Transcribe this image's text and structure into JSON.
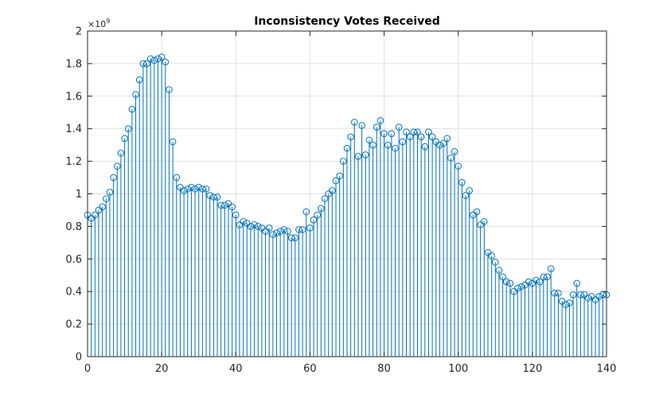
{
  "chart_data": {
    "type": "stem",
    "title": "Inconsistency Votes Received",
    "xlabel": "",
    "ylabel": "",
    "xlim": [
      0,
      140
    ],
    "ylim": [
      0,
      2
    ],
    "y_multiplier_label": "×10",
    "y_multiplier_exponent": "9",
    "grid": true,
    "color": "#0072BD",
    "x_ticks": [
      "0",
      "20",
      "40",
      "60",
      "80",
      "100",
      "120",
      "140"
    ],
    "y_ticks": [
      "0",
      "0.2",
      "0.4",
      "0.6",
      "0.8",
      "1",
      "1.2",
      "1.4",
      "1.6",
      "1.8",
      "2"
    ],
    "series": [
      {
        "values": [
          0.87,
          0.85,
          0.87,
          0.9,
          0.92,
          0.97,
          1.01,
          1.1,
          1.17,
          1.25,
          1.34,
          1.4,
          1.52,
          1.61,
          1.7,
          1.8,
          1.8,
          1.83,
          1.82,
          1.83,
          1.84,
          1.81,
          1.64,
          1.32,
          1.1,
          1.04,
          1.02,
          1.03,
          1.04,
          1.03,
          1.04,
          1.03,
          1.03,
          0.99,
          0.98,
          0.98,
          0.93,
          0.93,
          0.94,
          0.92,
          0.87,
          0.81,
          0.83,
          0.82,
          0.8,
          0.81,
          0.8,
          0.79,
          0.77,
          0.79,
          0.75,
          0.76,
          0.77,
          0.78,
          0.77,
          0.73,
          0.73,
          0.78,
          0.78,
          0.89,
          0.79,
          0.84,
          0.87,
          0.91,
          0.97,
          1.0,
          1.02,
          1.08,
          1.11,
          1.2,
          1.28,
          1.35,
          1.44,
          1.23,
          1.42,
          1.24,
          1.33,
          1.3,
          1.41,
          1.45,
          1.37,
          1.3,
          1.37,
          1.28,
          1.41,
          1.32,
          1.38,
          1.35,
          1.38,
          1.38,
          1.35,
          1.29,
          1.38,
          1.35,
          1.32,
          1.3,
          1.31,
          1.34,
          1.22,
          1.26,
          1.17,
          1.07,
          0.99,
          1.02,
          0.87,
          0.89,
          0.81,
          0.83,
          0.64,
          0.62,
          0.58,
          0.53,
          0.49,
          0.46,
          0.45,
          0.4,
          0.42,
          0.43,
          0.44,
          0.46,
          0.45,
          0.47,
          0.46,
          0.49,
          0.49,
          0.54,
          0.39,
          0.39,
          0.34,
          0.32,
          0.33,
          0.38,
          0.45,
          0.38,
          0.38,
          0.36,
          0.37,
          0.35,
          0.37,
          0.38,
          0.38
        ]
      }
    ]
  }
}
